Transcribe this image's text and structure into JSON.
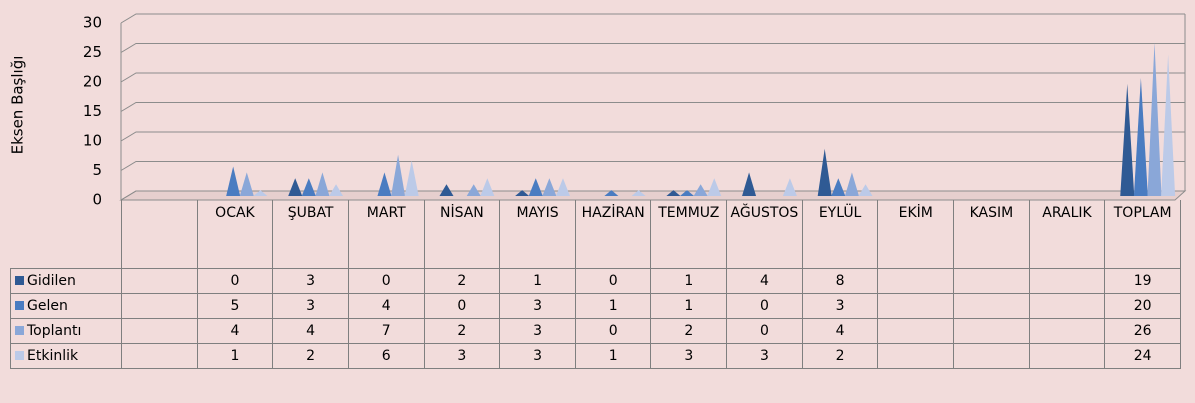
{
  "chart_data": {
    "type": "cone3d",
    "y_axis_label": "Eksen Başlığı",
    "categories": [
      null,
      "OCAK",
      "ŞUBAT",
      "MART",
      "NİSAN",
      "MAYIS",
      "HAZİRAN",
      "TEMMUZ",
      "AĞUSTOS",
      "EYLÜL",
      "EKİM",
      "KASIM",
      "ARALIK",
      "TOPLAM"
    ],
    "series": [
      {
        "name": "Gidilen",
        "color": "#2f5a94",
        "values": [
          null,
          0,
          3,
          0,
          2,
          1,
          0,
          1,
          4,
          8,
          null,
          null,
          null,
          19
        ]
      },
      {
        "name": "Gelen",
        "color": "#4a7cc1",
        "values": [
          null,
          5,
          3,
          4,
          0,
          3,
          1,
          1,
          0,
          3,
          null,
          null,
          null,
          20
        ]
      },
      {
        "name": "Toplantı",
        "color": "#8aa7d8",
        "values": [
          null,
          4,
          4,
          7,
          2,
          3,
          0,
          2,
          0,
          4,
          null,
          null,
          null,
          26
        ]
      },
      {
        "name": "Etkinlik",
        "color": "#bccae8",
        "values": [
          null,
          1,
          2,
          6,
          3,
          3,
          1,
          3,
          3,
          2,
          null,
          null,
          null,
          24
        ]
      }
    ],
    "ylim": [
      0,
      30
    ],
    "yticks": [
      0,
      5,
      10,
      15,
      20,
      25,
      30
    ],
    "grid": true,
    "data_table": true
  }
}
